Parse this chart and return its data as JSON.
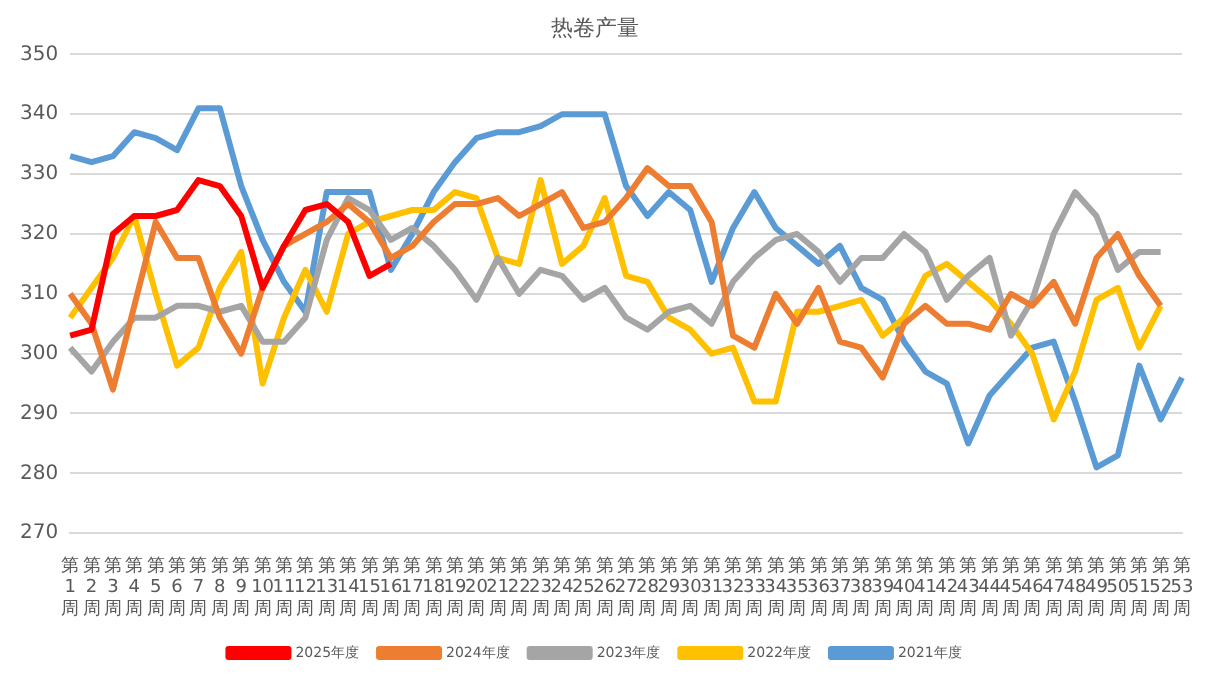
{
  "chart_data": {
    "type": "line",
    "title": "热卷产量",
    "categories": [
      "第1周",
      "第2周",
      "第3周",
      "第4周",
      "第5周",
      "第6周",
      "第7周",
      "第8周",
      "第9周",
      "第10周",
      "第11周",
      "第12周",
      "第13周",
      "第14周",
      "第15周",
      "第16周",
      "第17周",
      "第18周",
      "第19周",
      "第20周",
      "第21周",
      "第22周",
      "第23周",
      "第24周",
      "第25周",
      "第26周",
      "第27周",
      "第28周",
      "第29周",
      "第30周",
      "第31周",
      "第32周",
      "第33周",
      "第34周",
      "第35周",
      "第36周",
      "第37周",
      "第38周",
      "第39周",
      "第40周",
      "第41周",
      "第42周",
      "第43周",
      "第44周",
      "第45周",
      "第46周",
      "第47周",
      "第48周",
      "第49周",
      "第50周",
      "第51周",
      "第52周",
      "第53周"
    ],
    "series": [
      {
        "name": "2025年度",
        "color": "#ff0000",
        "values": [
          303,
          304,
          320,
          323,
          323,
          324,
          329,
          328,
          323,
          311,
          318,
          324,
          325,
          322,
          313,
          315,
          null,
          null,
          null,
          null,
          null,
          null,
          null,
          null,
          null,
          null,
          null,
          null,
          null,
          null,
          null,
          null,
          null,
          null,
          null,
          null,
          null,
          null,
          null,
          null,
          null,
          null,
          null,
          null,
          null,
          null,
          null,
          null,
          null,
          null,
          null,
          null,
          null
        ]
      },
      {
        "name": "2024年度",
        "color": "#ed7d31",
        "values": [
          310,
          305,
          294,
          308,
          322,
          316,
          316,
          306,
          300,
          311,
          318,
          320,
          322,
          325,
          322,
          316,
          318,
          322,
          325,
          325,
          326,
          323,
          325,
          327,
          321,
          322,
          326,
          331,
          328,
          328,
          322,
          303,
          301,
          310,
          305,
          311,
          302,
          301,
          296,
          305,
          308,
          305,
          305,
          304,
          310,
          308,
          312,
          305,
          316,
          320,
          313,
          308,
          null
        ]
      },
      {
        "name": "2023年度",
        "color": "#a5a5a5",
        "values": [
          301,
          297,
          302,
          306,
          306,
          308,
          308,
          307,
          308,
          302,
          302,
          306,
          319,
          326,
          324,
          319,
          321,
          318,
          314,
          309,
          316,
          310,
          314,
          313,
          309,
          311,
          306,
          304,
          307,
          308,
          305,
          312,
          316,
          319,
          320,
          317,
          312,
          316,
          316,
          320,
          317,
          309,
          313,
          316,
          303,
          309,
          320,
          327,
          323,
          314,
          317,
          317,
          null
        ]
      },
      {
        "name": "2022年度",
        "color": "#ffc000",
        "values": [
          306,
          311,
          316,
          323,
          310,
          298,
          301,
          311,
          317,
          295,
          306,
          314,
          307,
          320,
          322,
          323,
          324,
          324,
          327,
          326,
          316,
          315,
          329,
          315,
          318,
          326,
          313,
          312,
          306,
          304,
          300,
          301,
          292,
          292,
          307,
          307,
          308,
          309,
          303,
          306,
          313,
          315,
          312,
          309,
          305,
          300,
          289,
          297,
          309,
          311,
          301,
          308,
          null
        ]
      },
      {
        "name": "2021年度",
        "color": "#5b9bd5",
        "values": [
          333,
          332,
          333,
          337,
          336,
          334,
          341,
          341,
          328,
          319,
          312,
          307,
          327,
          327,
          327,
          314,
          320,
          327,
          332,
          336,
          337,
          337,
          338,
          340,
          340,
          340,
          328,
          323,
          327,
          324,
          312,
          321,
          327,
          321,
          318,
          315,
          318,
          311,
          309,
          302,
          297,
          295,
          285,
          293,
          297,
          301,
          302,
          292,
          281,
          283,
          298,
          289,
          296
        ]
      }
    ],
    "ylim": [
      270,
      350
    ],
    "yticks": [
      270,
      280,
      290,
      300,
      310,
      320,
      330,
      340,
      350
    ],
    "grid": "y",
    "legend": "bottom",
    "marker": "none",
    "line_style": "solid"
  }
}
